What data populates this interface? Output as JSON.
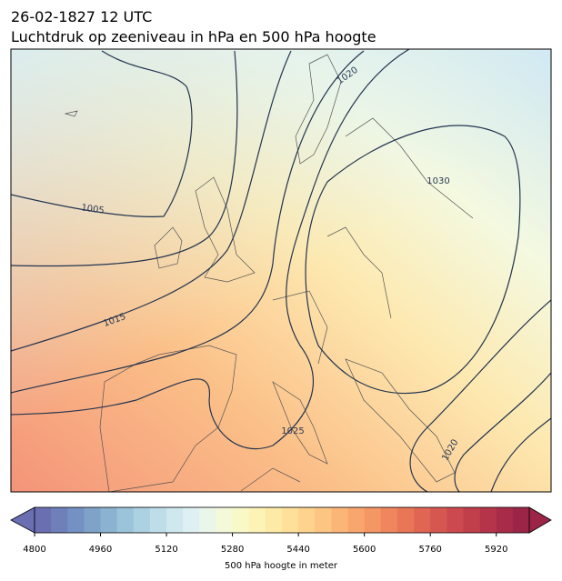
{
  "header": {
    "date": "26-02-1827 12 UTC",
    "title": "Luchtdruk op zeeniveau in hPa en 500 hPa hoogte"
  },
  "contour_labels": [
    "1020",
    "1030",
    "1005",
    "1015",
    "1025",
    "1020"
  ],
  "colorbar": {
    "label": "500 hPa hoogte in meter",
    "lim": [
      4800,
      6000
    ],
    "ticks": [
      4800,
      4960,
      5120,
      5280,
      5440,
      5600,
      5760,
      5920
    ],
    "colors": [
      "#6a6fb2",
      "#6e7fba",
      "#7590c2",
      "#7fa2c9",
      "#8bb3d1",
      "#9bc3da",
      "#acd1e3",
      "#bedde9",
      "#cfe7ef",
      "#dff0f2",
      "#ebf6ea",
      "#f4f9da",
      "#f9f9c8",
      "#fdf3b6",
      "#fdeaa6",
      "#fee09a",
      "#fdd38d",
      "#fdc582",
      "#fbb677",
      "#f8a66d",
      "#f49765",
      "#ef865d",
      "#e87657",
      "#e06653",
      "#d6574f",
      "#cc4a4d",
      "#c13e4b",
      "#b5344a",
      "#a82b49",
      "#9b2447"
    ]
  }
}
